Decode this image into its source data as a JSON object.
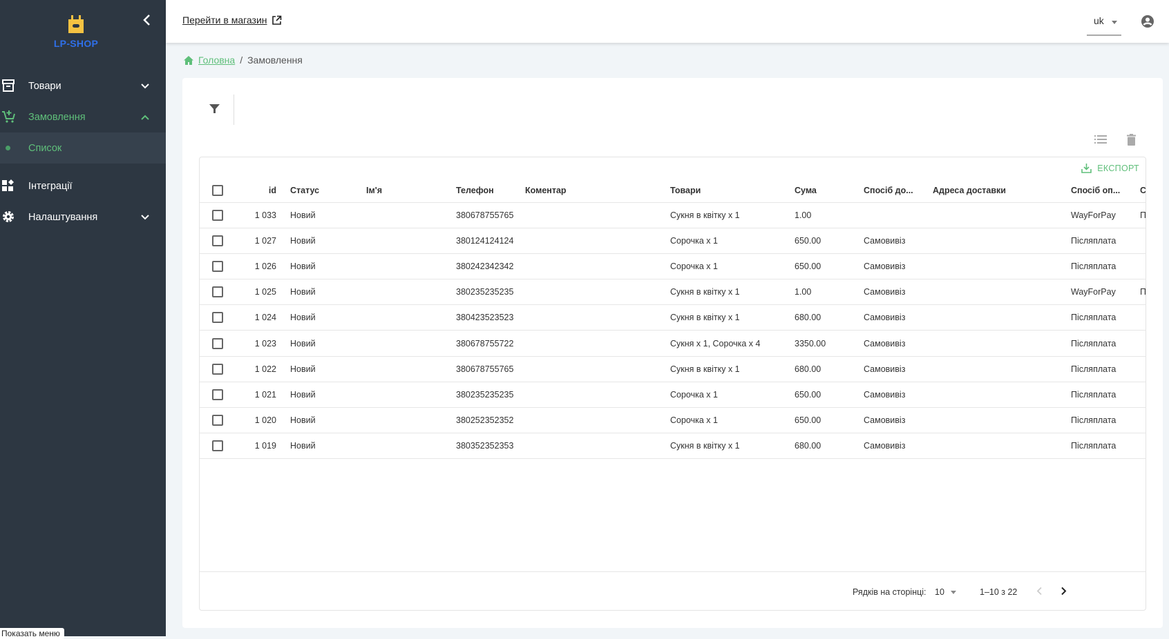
{
  "sidebar": {
    "logo_text": "LP-SHOP",
    "items": [
      {
        "label": "Товари",
        "icon": "archive-icon",
        "expanded": false
      },
      {
        "label": "Замовлення",
        "icon": "cart-plus-icon",
        "expanded": true
      },
      {
        "label": "Список",
        "icon": "dot-icon",
        "selected": true
      },
      {
        "label": "Інтеграції",
        "icon": "widgets-icon"
      },
      {
        "label": "Налаштування",
        "icon": "gear-icon",
        "expanded": false
      }
    ],
    "tooltip": "Показать меню"
  },
  "header": {
    "shop_link": "Перейти в магазин",
    "language": "uk"
  },
  "breadcrumb": {
    "home": "Головна",
    "current": "Замовлення"
  },
  "toolbar": {
    "export_label": "ЕКСПОРТ"
  },
  "colors": {
    "accent": "#5fbf7a",
    "sidebar": "#2d3742",
    "logo_yellow": "#f5c242",
    "logo_blue": "#2f6fe8"
  },
  "table": {
    "columns": [
      "id",
      "Статус",
      "Ім'я",
      "Телефон",
      "Коментар",
      "Товари",
      "Сума",
      "Спосіб до...",
      "Адреса доставки",
      "Спосіб оп...",
      "С"
    ],
    "rows": [
      {
        "id": "1 033",
        "status": "Новий",
        "name": "",
        "phone": "380678755765",
        "comment": "",
        "items": "Сукня в квітку x 1",
        "sum": "1.00",
        "delivery": "",
        "address": "",
        "payment": "WayForPay",
        "extra": "П"
      },
      {
        "id": "1 027",
        "status": "Новий",
        "name": "",
        "phone": "380124124124",
        "comment": "",
        "items": "Сорочка x 1",
        "sum": "650.00",
        "delivery": "Самовивіз",
        "address": "",
        "payment": "Післяплата",
        "extra": ""
      },
      {
        "id": "1 026",
        "status": "Новий",
        "name": "",
        "phone": "380242342342",
        "comment": "",
        "items": "Сорочка x 1",
        "sum": "650.00",
        "delivery": "Самовивіз",
        "address": "",
        "payment": "Післяплата",
        "extra": ""
      },
      {
        "id": "1 025",
        "status": "Новий",
        "name": "",
        "phone": "380235235235",
        "comment": "",
        "items": "Сукня в квітку x 1",
        "sum": "1.00",
        "delivery": "Самовивіз",
        "address": "",
        "payment": "WayForPay",
        "extra": "П"
      },
      {
        "id": "1 024",
        "status": "Новий",
        "name": "",
        "phone": "380423523523",
        "comment": "",
        "items": "Сукня в квітку x 1",
        "sum": "680.00",
        "delivery": "Самовивіз",
        "address": "",
        "payment": "Післяплата",
        "extra": ""
      },
      {
        "id": "1 023",
        "status": "Новий",
        "name": "",
        "phone": "380678755722",
        "comment": "",
        "items": "Сукня x 1, Сорочка x 4",
        "sum": "3350.00",
        "delivery": "Самовивіз",
        "address": "",
        "payment": "Післяплата",
        "extra": ""
      },
      {
        "id": "1 022",
        "status": "Новий",
        "name": "",
        "phone": "380678755765",
        "comment": "",
        "items": "Сукня в квітку x 1",
        "sum": "680.00",
        "delivery": "Самовивіз",
        "address": "",
        "payment": "Післяплата",
        "extra": ""
      },
      {
        "id": "1 021",
        "status": "Новий",
        "name": "",
        "phone": "380235235235",
        "comment": "",
        "items": "Сорочка x 1",
        "sum": "650.00",
        "delivery": "Самовивіз",
        "address": "",
        "payment": "Післяплата",
        "extra": ""
      },
      {
        "id": "1 020",
        "status": "Новий",
        "name": "",
        "phone": "380252352352",
        "comment": "",
        "items": "Сорочка x 1",
        "sum": "650.00",
        "delivery": "Самовивіз",
        "address": "",
        "payment": "Післяплата",
        "extra": ""
      },
      {
        "id": "1 019",
        "status": "Новий",
        "name": "",
        "phone": "380352352353",
        "comment": "",
        "items": "Сукня в квітку x 1",
        "sum": "680.00",
        "delivery": "Самовивіз",
        "address": "",
        "payment": "Післяплата",
        "extra": ""
      }
    ]
  },
  "pagination": {
    "rows_per_page_label": "Рядків на сторінці:",
    "rows_per_page": "10",
    "range": "1–10 з 22"
  }
}
